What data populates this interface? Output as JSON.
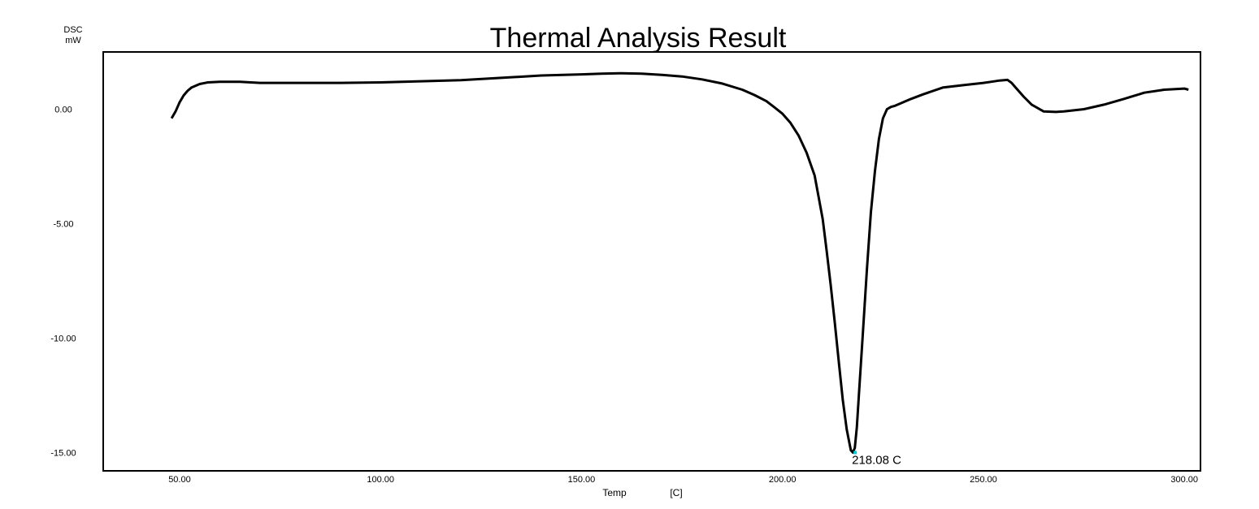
{
  "chart_data": {
    "type": "line",
    "title": "Thermal Analysis Result",
    "ylabel": "DSC",
    "yunit": "mW",
    "xlabel": "Temp",
    "xunit": "[C]",
    "xlim": [
      31,
      304
    ],
    "ylim": [
      -15.8,
      2.5
    ],
    "xticks": [
      50,
      100,
      150,
      200,
      250,
      300
    ],
    "xtick_labels": [
      "50.00",
      "100.00",
      "150.00",
      "200.00",
      "250.00",
      "300.00"
    ],
    "yticks": [
      0,
      -5,
      -10,
      -15
    ],
    "ytick_labels": [
      "0.00",
      "-5.00",
      "-10.00",
      "-15.00"
    ],
    "grid": false,
    "peak": {
      "x": 218.08,
      "y": -15.0,
      "label": "218.08  C",
      "marker_color": "#00c8d8"
    },
    "series": [
      {
        "color": "#000000",
        "x": [
          48,
          49,
          50,
          51,
          52,
          53,
          55,
          57,
          60,
          65,
          70,
          80,
          90,
          100,
          110,
          120,
          130,
          140,
          150,
          155,
          160,
          165,
          170,
          175,
          180,
          185,
          190,
          193,
          196,
          198,
          200,
          202,
          204,
          206,
          208,
          210,
          211,
          212,
          213,
          214,
          215,
          216,
          217,
          217.5,
          218,
          218.5,
          219,
          220,
          221,
          222,
          223,
          224,
          225,
          226,
          227,
          228,
          230,
          232,
          235,
          240,
          245,
          250,
          252,
          254,
          256,
          257,
          258,
          260,
          262,
          265,
          268,
          270,
          275,
          280,
          285,
          290,
          295,
          300,
          301
        ],
        "y": [
          -0.4,
          -0.1,
          0.3,
          0.6,
          0.8,
          0.95,
          1.1,
          1.17,
          1.2,
          1.2,
          1.15,
          1.15,
          1.15,
          1.17,
          1.22,
          1.27,
          1.37,
          1.47,
          1.52,
          1.55,
          1.57,
          1.55,
          1.5,
          1.43,
          1.3,
          1.12,
          0.85,
          0.62,
          0.35,
          0.08,
          -0.2,
          -0.6,
          -1.15,
          -1.9,
          -2.9,
          -4.8,
          -6.2,
          -7.7,
          -9.3,
          -11.0,
          -12.7,
          -14.0,
          -14.9,
          -15.0,
          -14.8,
          -13.9,
          -12.5,
          -9.8,
          -7.0,
          -4.5,
          -2.7,
          -1.3,
          -0.4,
          0.0,
          0.1,
          0.15,
          0.3,
          0.45,
          0.65,
          0.95,
          1.05,
          1.15,
          1.2,
          1.25,
          1.28,
          1.15,
          0.95,
          0.55,
          0.2,
          -0.1,
          -0.12,
          -0.1,
          0.0,
          0.2,
          0.45,
          0.72,
          0.85,
          0.9,
          0.85
        ]
      }
    ]
  }
}
